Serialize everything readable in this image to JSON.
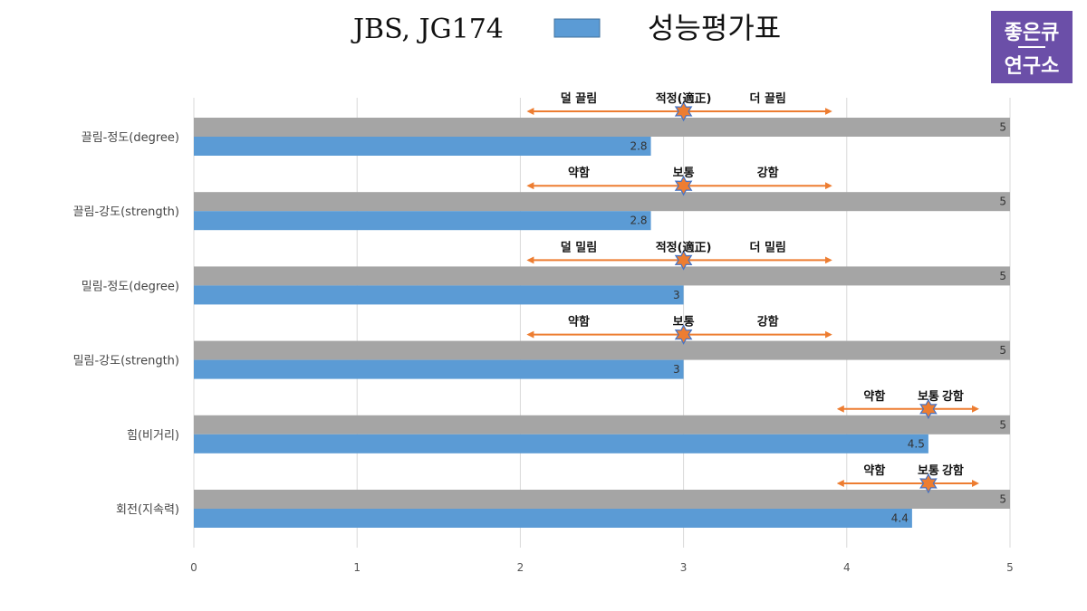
{
  "chart_data": {
    "type": "bar",
    "orientation": "horizontal",
    "title": "JBS, JG174",
    "legend_label": "성능평가표",
    "categories": [
      "끌림-정도(degree)",
      "끌림-강도(strength)",
      "밀림-정도(degree)",
      "밀림-강도(strength)",
      "힘(비거리)",
      "회전(지속력)"
    ],
    "series": [
      {
        "values": [
          5,
          5,
          5,
          5,
          5,
          5
        ],
        "color": "#a5a5a5"
      },
      {
        "name": "성능평가표",
        "values": [
          2.8,
          2.8,
          3,
          3,
          4.5,
          4.4
        ],
        "color": "#5b9bd5"
      }
    ],
    "xlim": [
      0,
      5
    ],
    "xticks": [
      0,
      1,
      2,
      3,
      4,
      5
    ],
    "grid": true,
    "legend_position": "top",
    "annotations": [
      {
        "left": "덜 끌림",
        "center": "적정(適正)",
        "right": "더 끌림",
        "marker_value": 3,
        "arrow_range": [
          2.05,
          3.9
        ]
      },
      {
        "left": "약함",
        "center": "보통",
        "right": "강함",
        "marker_value": 3,
        "arrow_range": [
          2.05,
          3.9
        ]
      },
      {
        "left": "덜 밀림",
        "center": "적정(適正)",
        "right": "더 밀림",
        "marker_value": 3,
        "arrow_range": [
          2.05,
          3.9
        ]
      },
      {
        "left": "약함",
        "center": "보통",
        "right": "강함",
        "marker_value": 3,
        "arrow_range": [
          2.05,
          3.9
        ]
      },
      {
        "left": "약함",
        "center": "보통",
        "right": "강함",
        "marker_value": 4.5,
        "arrow_range": [
          3.95,
          4.8
        ]
      },
      {
        "left": "약함",
        "center": "보통",
        "right": "강함",
        "marker_value": 4.5,
        "arrow_range": [
          3.95,
          4.8
        ]
      }
    ],
    "colors": {
      "arrow": "#ed7d31",
      "star": "#ed7d31",
      "star_stroke": "#4472c4"
    }
  },
  "logo": {
    "line1": "좋은큐",
    "line2": "연구소",
    "bg": "#6b4fa8"
  }
}
